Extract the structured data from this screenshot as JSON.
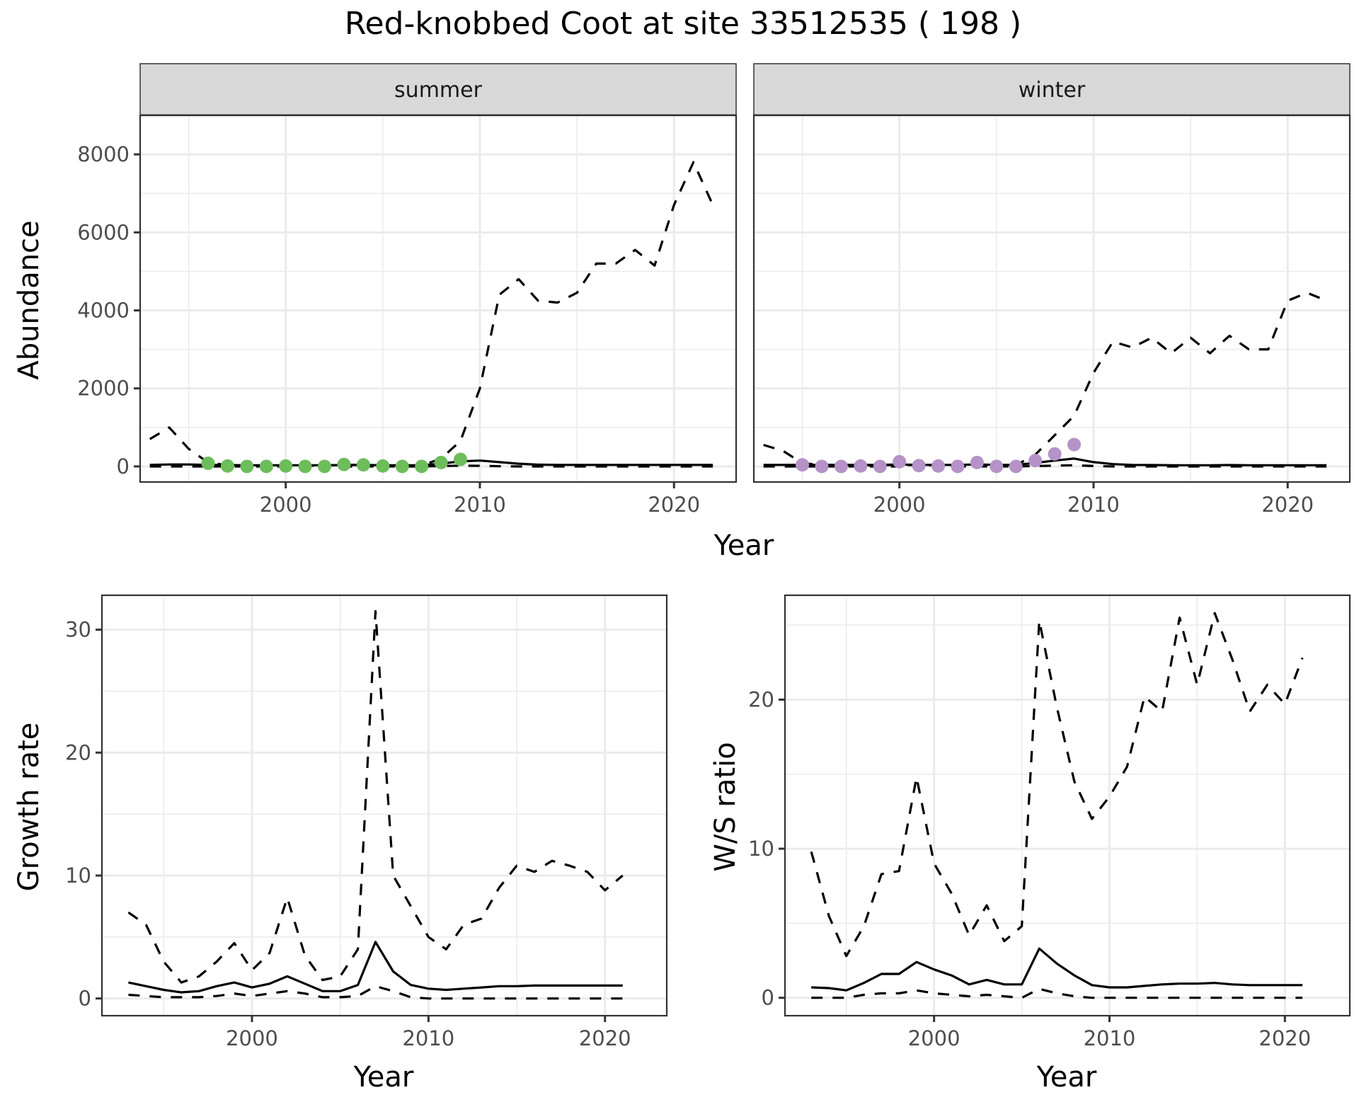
{
  "title": "Red-knobbed Coot at site 33512535 ( 198 )",
  "colors": {
    "summer_points": "#6dbd5b",
    "winter_points": "#b592c8",
    "line": "#000000",
    "strip_fill": "#d9d9d9",
    "grid": "#ebebeb",
    "axis_text": "#4d4d4d"
  },
  "chart_data": [
    {
      "id": "abundance-summer",
      "type": "line",
      "facet": "summer",
      "xlabel": "Year",
      "ylabel": "Abundance",
      "xlim": [
        1992.5,
        2023.2
      ],
      "ylim": [
        -400,
        9000
      ],
      "xticks": [
        2000,
        2010,
        2020
      ],
      "yticks": [
        0,
        2000,
        4000,
        6000,
        8000
      ],
      "grid": true,
      "series": [
        {
          "name": "upper",
          "style": "dashed",
          "x": [
            1993,
            1994,
            1995,
            1996,
            1997,
            1998,
            1999,
            2000,
            2001,
            2002,
            2003,
            2004,
            2005,
            2006,
            2007,
            2008,
            2009,
            2010,
            2011,
            2012,
            2013,
            2014,
            2015,
            2016,
            2017,
            2018,
            2019,
            2020,
            2021,
            2022
          ],
          "y": [
            700,
            1000,
            450,
            100,
            30,
            20,
            20,
            20,
            20,
            20,
            40,
            40,
            30,
            20,
            20,
            200,
            650,
            2000,
            4400,
            4800,
            4250,
            4200,
            4450,
            5200,
            5200,
            5550,
            5150,
            6700,
            7800,
            6700
          ]
        },
        {
          "name": "median",
          "style": "solid",
          "x": [
            1993,
            1994,
            1995,
            1996,
            1997,
            1998,
            1999,
            2000,
            2001,
            2002,
            2003,
            2004,
            2005,
            2006,
            2007,
            2008,
            2009,
            2010,
            2011,
            2012,
            2013,
            2014,
            2015,
            2016,
            2017,
            2018,
            2019,
            2020,
            2021,
            2022
          ],
          "y": [
            40,
            50,
            50,
            40,
            35,
            30,
            30,
            30,
            30,
            30,
            35,
            35,
            30,
            30,
            30,
            70,
            130,
            150,
            110,
            70,
            45,
            40,
            40,
            40,
            40,
            40,
            40,
            40,
            40,
            40
          ]
        },
        {
          "name": "lower",
          "style": "dashed",
          "x": [
            1993,
            1994,
            1995,
            1996,
            1997,
            1998,
            1999,
            2000,
            2001,
            2002,
            2003,
            2004,
            2005,
            2006,
            2007,
            2008,
            2009,
            2010,
            2011,
            2012,
            2013,
            2014,
            2015,
            2016,
            2017,
            2018,
            2019,
            2020,
            2021,
            2022
          ],
          "y": [
            0,
            0,
            0,
            0,
            0,
            0,
            0,
            0,
            0,
            0,
            0,
            0,
            0,
            0,
            0,
            10,
            20,
            15,
            5,
            0,
            0,
            0,
            0,
            0,
            0,
            0,
            0,
            0,
            0,
            0
          ]
        },
        {
          "name": "observed",
          "style": "points",
          "x": [
            1996,
            1997,
            1998,
            1999,
            2000,
            2001,
            2002,
            2003,
            2004,
            2005,
            2006,
            2007,
            2008,
            2009
          ],
          "y": [
            80,
            10,
            0,
            0,
            10,
            0,
            0,
            50,
            40,
            10,
            0,
            0,
            100,
            180
          ]
        }
      ]
    },
    {
      "id": "abundance-winter",
      "type": "line",
      "facet": "winter",
      "xlabel": "Year",
      "ylabel": "Abundance",
      "xlim": [
        1992.5,
        2023.2
      ],
      "ylim": [
        -400,
        9000
      ],
      "xticks": [
        2000,
        2010,
        2020
      ],
      "yticks": [
        0,
        2000,
        4000,
        6000,
        8000
      ],
      "grid": true,
      "series": [
        {
          "name": "upper",
          "style": "dashed",
          "x": [
            1993,
            1994,
            1995,
            1996,
            1997,
            1998,
            1999,
            2000,
            2001,
            2002,
            2003,
            2004,
            2005,
            2006,
            2007,
            2008,
            2009,
            2010,
            2011,
            2012,
            2013,
            2014,
            2015,
            2016,
            2017,
            2018,
            2019,
            2020,
            2021,
            2022
          ],
          "y": [
            550,
            400,
            80,
            40,
            30,
            30,
            30,
            40,
            30,
            30,
            30,
            50,
            30,
            30,
            300,
            800,
            1300,
            2400,
            3200,
            3050,
            3300,
            2900,
            3300,
            2900,
            3350,
            3000,
            3000,
            4250,
            4450,
            4250
          ]
        },
        {
          "name": "median",
          "style": "solid",
          "x": [
            1993,
            1994,
            1995,
            1996,
            1997,
            1998,
            1999,
            2000,
            2001,
            2002,
            2003,
            2004,
            2005,
            2006,
            2007,
            2008,
            2009,
            2010,
            2011,
            2012,
            2013,
            2014,
            2015,
            2016,
            2017,
            2018,
            2019,
            2020,
            2021,
            2022
          ],
          "y": [
            40,
            40,
            40,
            40,
            40,
            40,
            40,
            50,
            40,
            40,
            40,
            50,
            40,
            40,
            90,
            150,
            200,
            110,
            60,
            40,
            35,
            30,
            30,
            30,
            35,
            30,
            30,
            30,
            30,
            30
          ]
        },
        {
          "name": "lower",
          "style": "dashed",
          "x": [
            1993,
            1994,
            1995,
            1996,
            1997,
            1998,
            1999,
            2000,
            2001,
            2002,
            2003,
            2004,
            2005,
            2006,
            2007,
            2008,
            2009,
            2010,
            2011,
            2012,
            2013,
            2014,
            2015,
            2016,
            2017,
            2018,
            2019,
            2020,
            2021,
            2022
          ],
          "y": [
            0,
            0,
            0,
            0,
            0,
            0,
            0,
            0,
            0,
            0,
            0,
            0,
            0,
            0,
            10,
            20,
            30,
            10,
            0,
            0,
            0,
            0,
            0,
            0,
            0,
            0,
            0,
            0,
            0,
            0
          ]
        },
        {
          "name": "observed",
          "style": "points",
          "x": [
            1995,
            1996,
            1997,
            1998,
            1999,
            2000,
            2001,
            2002,
            2003,
            2004,
            2005,
            2006,
            2007,
            2008,
            2009
          ],
          "y": [
            40,
            0,
            0,
            10,
            0,
            120,
            20,
            10,
            0,
            100,
            0,
            0,
            150,
            320,
            560
          ]
        }
      ]
    },
    {
      "id": "growth-rate",
      "type": "line",
      "xlabel": "Year",
      "ylabel": "Growth rate",
      "xlim": [
        1991.5,
        2023.5
      ],
      "ylim": [
        -1.4,
        32.8
      ],
      "xticks": [
        2000,
        2010,
        2020
      ],
      "yticks": [
        0,
        10,
        20,
        30
      ],
      "grid": true,
      "series": [
        {
          "name": "upper",
          "style": "dashed",
          "x": [
            1993,
            1994,
            1995,
            1996,
            1997,
            1998,
            1999,
            2000,
            2001,
            2002,
            2003,
            2004,
            2005,
            2006,
            2007,
            2008,
            2009,
            2010,
            2011,
            2012,
            2013,
            2014,
            2015,
            2016,
            2017,
            2018,
            2019,
            2020,
            2021
          ],
          "y": [
            7,
            6,
            3,
            1.3,
            1.8,
            3,
            4.5,
            2.3,
            3.7,
            8.2,
            3.5,
            1.5,
            1.8,
            4,
            31.5,
            10,
            7.5,
            5,
            4,
            6,
            6.5,
            9,
            10.8,
            10.3,
            11.2,
            10.8,
            10.3,
            8.8,
            10
          ]
        },
        {
          "name": "median",
          "style": "solid",
          "x": [
            1993,
            1994,
            1995,
            1996,
            1997,
            1998,
            1999,
            2000,
            2001,
            2002,
            2003,
            2004,
            2005,
            2006,
            2007,
            2008,
            2009,
            2010,
            2011,
            2012,
            2013,
            2014,
            2015,
            2016,
            2017,
            2018,
            2019,
            2020,
            2021
          ],
          "y": [
            1.3,
            1,
            0.7,
            0.5,
            0.6,
            1,
            1.3,
            0.9,
            1.2,
            1.8,
            1.2,
            0.6,
            0.6,
            1.1,
            4.6,
            2.2,
            1.1,
            0.8,
            0.7,
            0.8,
            0.9,
            1,
            1,
            1.05,
            1.05,
            1.05,
            1.05,
            1.05,
            1.05
          ]
        },
        {
          "name": "lower",
          "style": "dashed",
          "x": [
            1993,
            1994,
            1995,
            1996,
            1997,
            1998,
            1999,
            2000,
            2001,
            2002,
            2003,
            2004,
            2005,
            2006,
            2007,
            2008,
            2009,
            2010,
            2011,
            2012,
            2013,
            2014,
            2015,
            2016,
            2017,
            2018,
            2019,
            2020,
            2021
          ],
          "y": [
            0.3,
            0.2,
            0.1,
            0.1,
            0.1,
            0.2,
            0.4,
            0.2,
            0.4,
            0.6,
            0.4,
            0.1,
            0.1,
            0.2,
            1,
            0.6,
            0.1,
            0,
            0,
            0,
            0,
            0,
            0,
            0,
            0,
            0,
            0,
            0,
            0
          ]
        }
      ]
    },
    {
      "id": "ws-ratio",
      "type": "line",
      "xlabel": "Year",
      "ylabel": "W/S ratio",
      "xlim": [
        1991.5,
        2023.7
      ],
      "ylim": [
        -1.2,
        27
      ],
      "xticks": [
        2000,
        2010,
        2020
      ],
      "yticks": [
        0,
        10,
        20
      ],
      "grid": true,
      "series": [
        {
          "name": "upper",
          "style": "dashed",
          "x": [
            1993,
            1994,
            1995,
            1996,
            1997,
            1998,
            1999,
            2000,
            2001,
            2002,
            2003,
            2004,
            2005,
            2006,
            2007,
            2008,
            2009,
            2010,
            2011,
            2012,
            2013,
            2014,
            2015,
            2016,
            2017,
            2018,
            2019,
            2020,
            2021
          ],
          "y": [
            9.8,
            5.5,
            2.8,
            4.8,
            8.3,
            8.5,
            14.8,
            9,
            7,
            4.2,
            6.2,
            3.8,
            4.8,
            25.3,
            19.5,
            14.5,
            12,
            13.5,
            15.5,
            20.2,
            19.2,
            25.5,
            21,
            25.8,
            22.7,
            19.2,
            21,
            19.7,
            22.8
          ]
        },
        {
          "name": "median",
          "style": "solid",
          "x": [
            1993,
            1994,
            1995,
            1996,
            1997,
            1998,
            1999,
            2000,
            2001,
            2002,
            2003,
            2004,
            2005,
            2006,
            2007,
            2008,
            2009,
            2010,
            2011,
            2012,
            2013,
            2014,
            2015,
            2016,
            2017,
            2018,
            2019,
            2020,
            2021
          ],
          "y": [
            0.7,
            0.65,
            0.5,
            1,
            1.6,
            1.6,
            2.4,
            1.9,
            1.5,
            0.9,
            1.2,
            0.9,
            0.9,
            3.3,
            2.3,
            1.5,
            0.85,
            0.7,
            0.7,
            0.8,
            0.9,
            0.95,
            0.95,
            1,
            0.9,
            0.85,
            0.85,
            0.85,
            0.85
          ]
        },
        {
          "name": "lower",
          "style": "dashed",
          "x": [
            1993,
            1994,
            1995,
            1996,
            1997,
            1998,
            1999,
            2000,
            2001,
            2002,
            2003,
            2004,
            2005,
            2006,
            2007,
            2008,
            2009,
            2010,
            2011,
            2012,
            2013,
            2014,
            2015,
            2016,
            2017,
            2018,
            2019,
            2020,
            2021
          ],
          "y": [
            0,
            0,
            0,
            0.2,
            0.3,
            0.3,
            0.5,
            0.3,
            0.2,
            0.1,
            0.2,
            0.1,
            0,
            0.6,
            0.3,
            0.1,
            0,
            0,
            0,
            0,
            0,
            0,
            0,
            0,
            0,
            0,
            0,
            0,
            0
          ]
        }
      ]
    }
  ],
  "labels": {
    "abundance_xlabel": "Year",
    "abundance_ylabel": "Abundance",
    "strip_summer": "summer",
    "strip_winter": "winter",
    "growth_xlabel": "Year",
    "growth_ylabel": "Growth rate",
    "ws_xlabel": "Year",
    "ws_ylabel": "W/S ratio"
  }
}
